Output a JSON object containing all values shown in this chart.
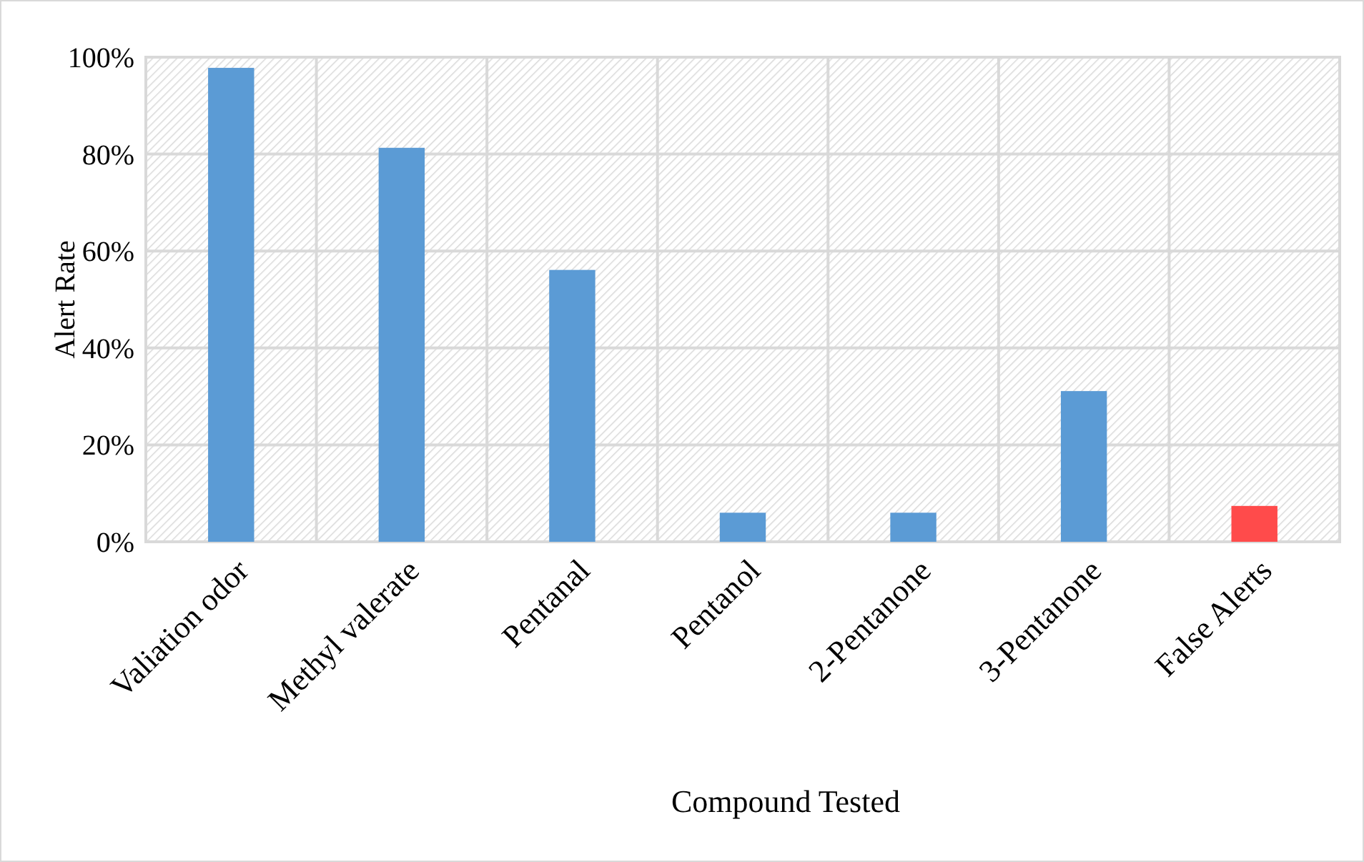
{
  "chart_data": {
    "type": "bar",
    "xlabel": "Compound Tested",
    "ylabel": "Alert Rate",
    "categories": [
      "Valiation odor",
      "Methyl valerate",
      "Pentanal",
      "Pentanol",
      "2-Pentanone",
      "3-Pentanone",
      "False Alerts"
    ],
    "values": [
      97.8,
      81.3,
      56.1,
      6.0,
      6.0,
      31.1,
      7.4
    ],
    "colors": [
      "#5b9bd5",
      "#5b9bd5",
      "#5b9bd5",
      "#5b9bd5",
      "#5b9bd5",
      "#5b9bd5",
      "#ff4b4b"
    ],
    "ylim": [
      0,
      100
    ],
    "yticks": [
      {
        "value": 0,
        "label": "0%"
      },
      {
        "value": 20,
        "label": "20%"
      },
      {
        "value": 40,
        "label": "40%"
      },
      {
        "value": 60,
        "label": "60%"
      },
      {
        "value": 80,
        "label": "80%"
      },
      {
        "value": 100,
        "label": "100%"
      }
    ],
    "grid": true
  }
}
